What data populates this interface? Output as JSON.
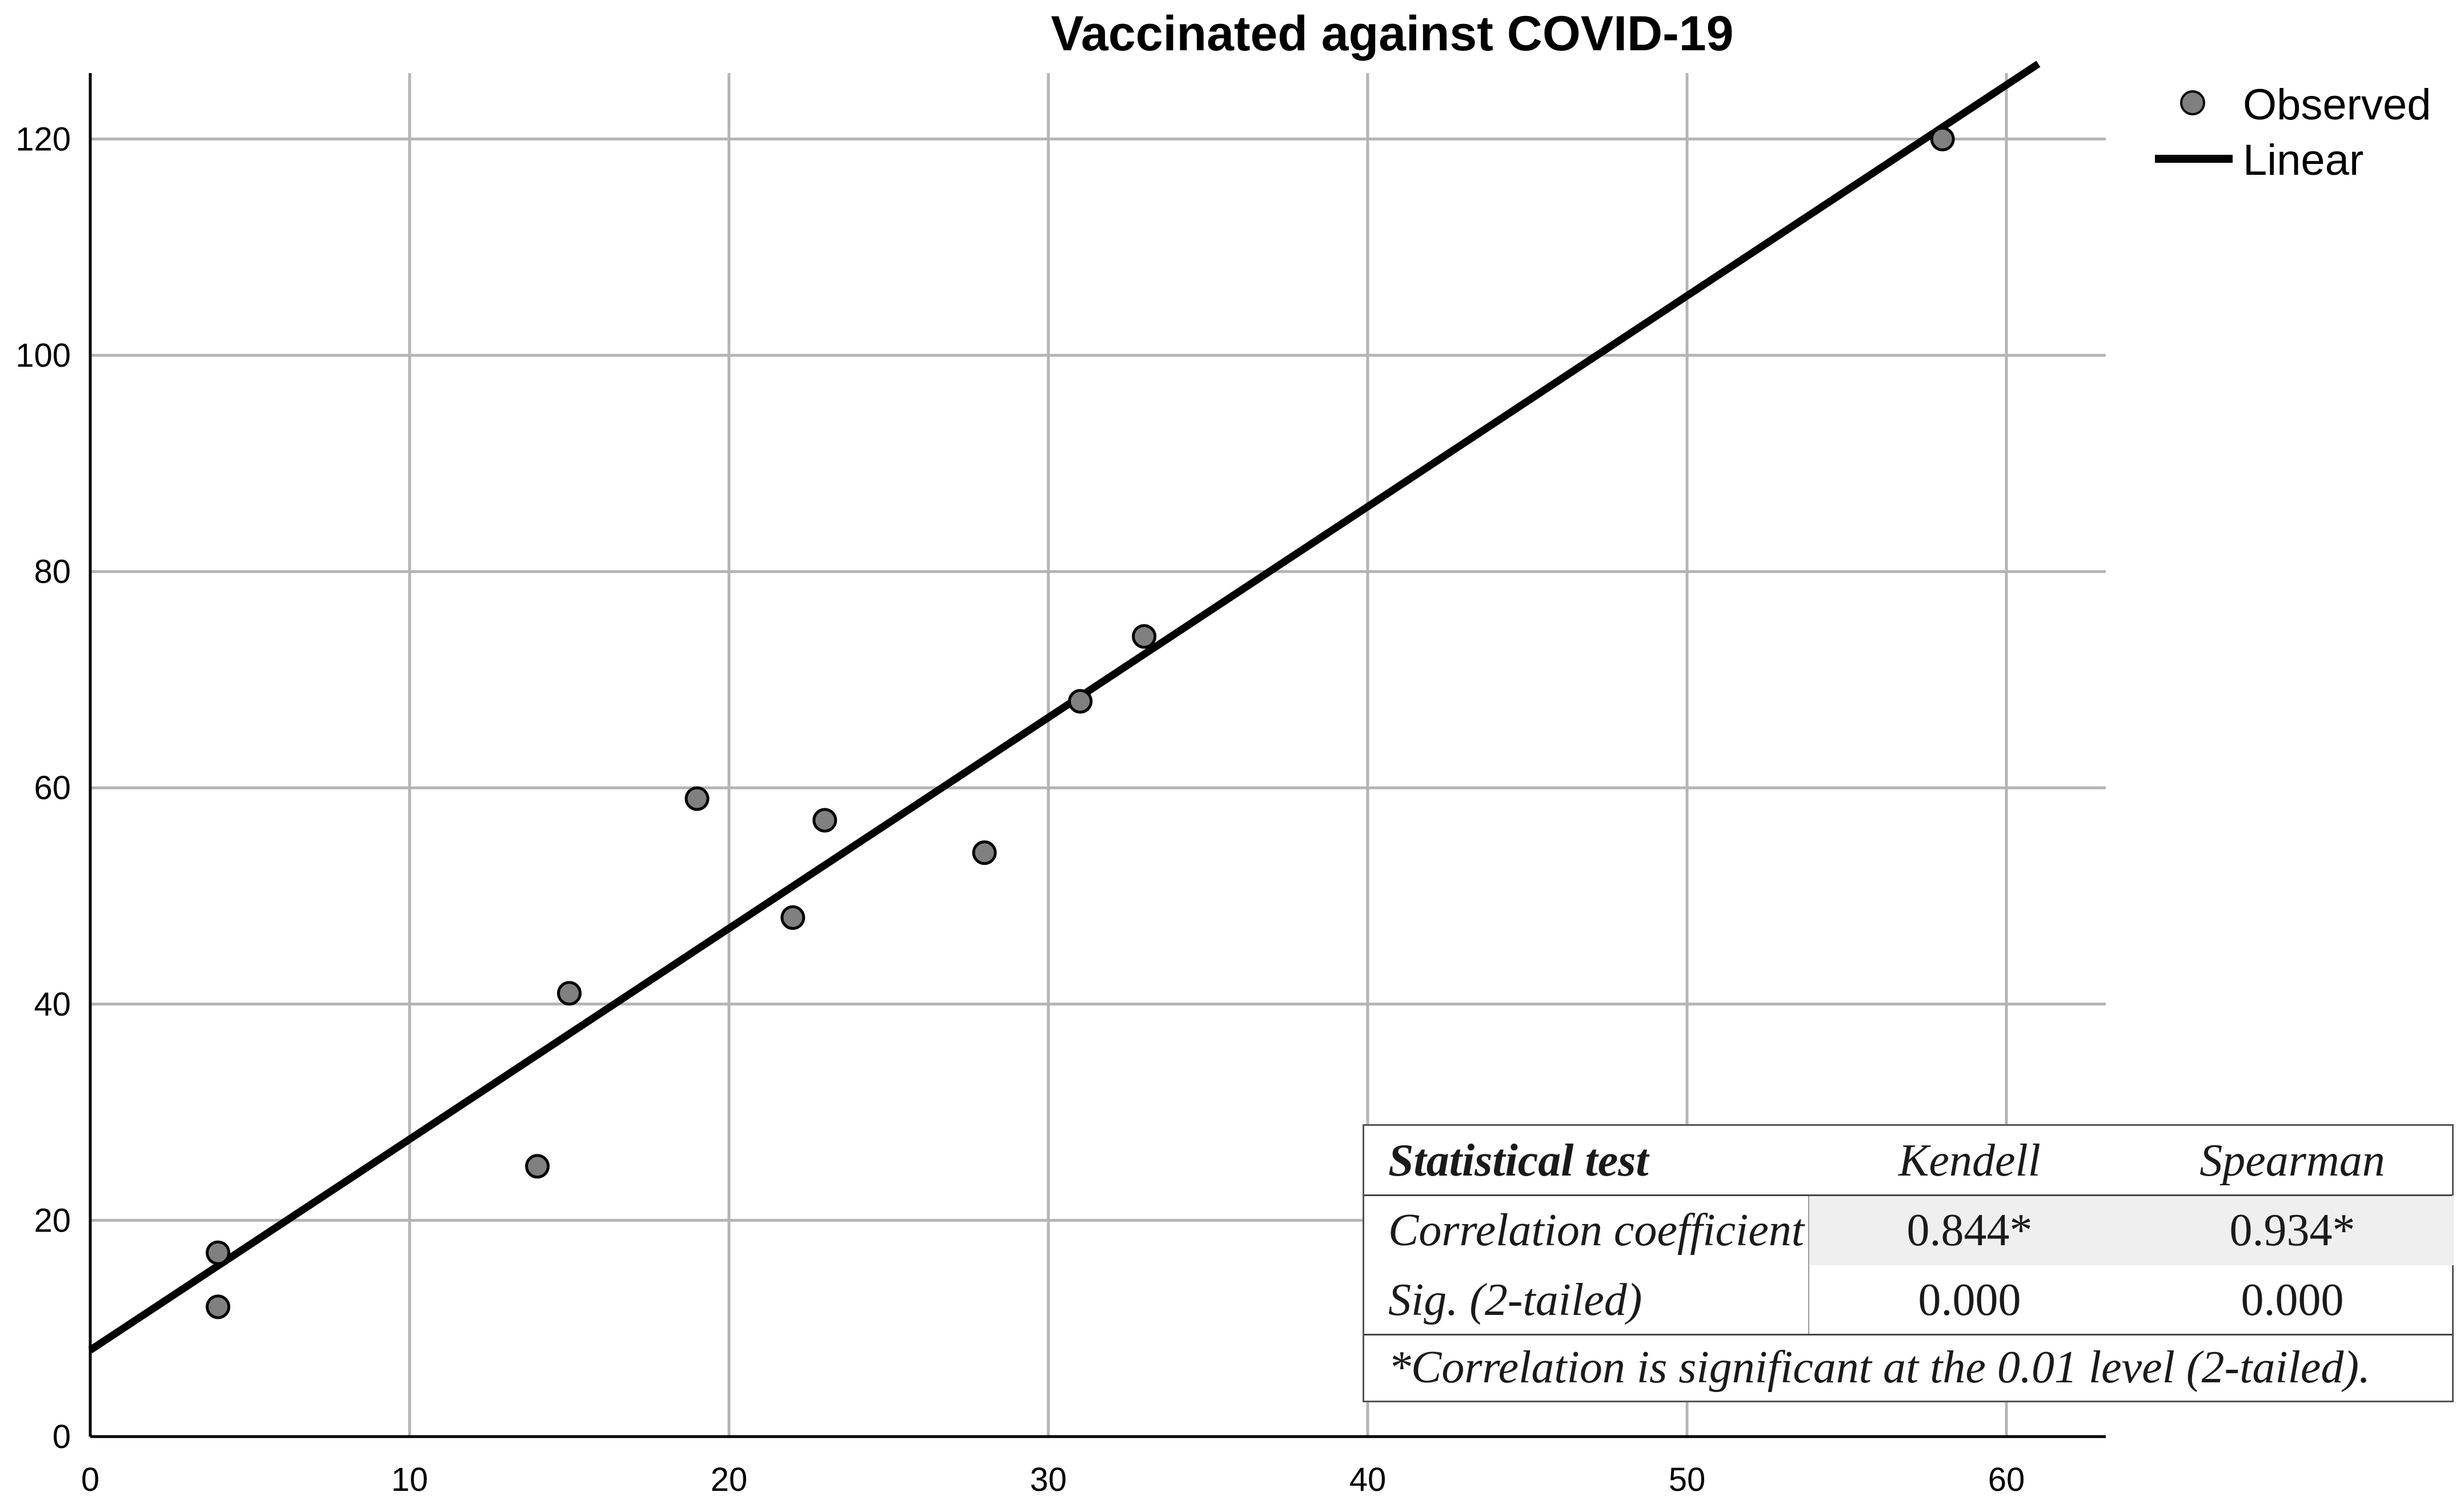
{
  "chart_data": {
    "type": "scatter",
    "title": "Vaccinated against COVID-19",
    "xlabel": "",
    "ylabel": "",
    "xlim": [
      0,
      63
    ],
    "ylim": [
      0,
      126
    ],
    "x_ticks": [
      0,
      10,
      20,
      30,
      40,
      50,
      60
    ],
    "y_ticks": [
      0,
      20,
      40,
      60,
      80,
      100,
      120
    ],
    "x_tick_labels": [
      "0",
      "10",
      "20",
      "30",
      "40",
      "50",
      "60"
    ],
    "y_tick_labels": [
      "0",
      "20",
      "40",
      "60",
      "80",
      "100",
      "120"
    ],
    "grid": true,
    "legend_position": "top-right",
    "series": [
      {
        "name": "Observed",
        "kind": "points",
        "color": "#808080",
        "points": [
          {
            "x": 4,
            "y": 17
          },
          {
            "x": 4,
            "y": 12
          },
          {
            "x": 14,
            "y": 25
          },
          {
            "x": 15,
            "y": 41
          },
          {
            "x": 19,
            "y": 59
          },
          {
            "x": 22,
            "y": 48
          },
          {
            "x": 23,
            "y": 57
          },
          {
            "x": 28,
            "y": 54
          },
          {
            "x": 31,
            "y": 68
          },
          {
            "x": 33,
            "y": 74
          },
          {
            "x": 58,
            "y": 120
          }
        ]
      },
      {
        "name": "Linear",
        "kind": "fit-line",
        "color": "#000000",
        "intercept": 8,
        "slope": 1.95,
        "x_range": [
          0,
          61
        ]
      }
    ]
  },
  "stats_table": {
    "headers": [
      "Statistical test",
      "Kendell",
      "Spearman"
    ],
    "rows": [
      {
        "label": "Correlation coefficient",
        "kendell": "0.844*",
        "spearman": "0.934*"
      },
      {
        "label": "Sig. (2-tailed)",
        "kendell": "0.000",
        "spearman": "0.000"
      }
    ],
    "note": "*Correlation is significant at the 0.01 level (2-tailed)."
  }
}
